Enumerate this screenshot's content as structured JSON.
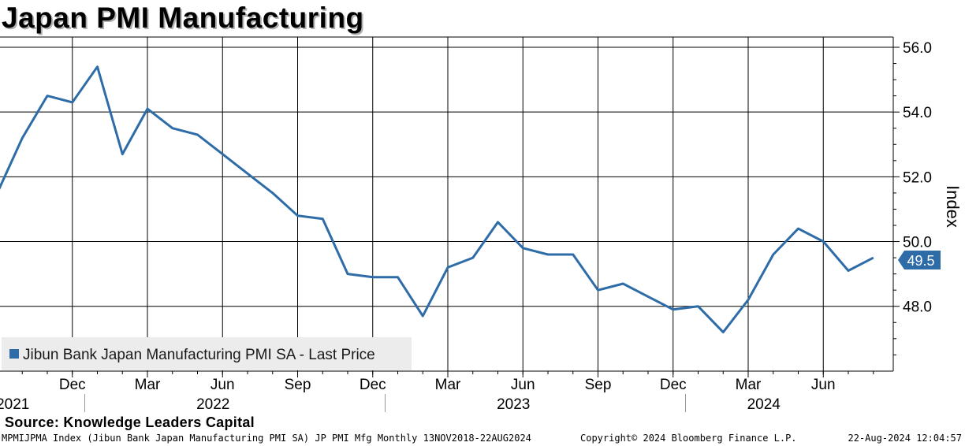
{
  "title": "Japan PMI Manufacturing",
  "source": "Source: Knowledge Leaders Capital",
  "footer": {
    "left": "MPMIJPMA Index (Jibun Bank Japan Manufacturing PMI SA) JP PMI Mfg  Monthly 13NOV2018-22AUG2024",
    "middle": "Copyright© 2024 Bloomberg Finance L.P.",
    "right": "22-Aug-2024 12:04:57"
  },
  "colors": {
    "line": "#2e6ca8",
    "grid": "#000000",
    "legend_bg": "#ececec",
    "last_price_tag": "#2e6ca8"
  },
  "chart_data": {
    "type": "line",
    "ylabel": "Index",
    "ylim": [
      46.2,
      56.6
    ],
    "yticks": [
      48.0,
      50.0,
      52.0,
      54.0,
      56.0
    ],
    "ytick_labels": [
      "48.0",
      "50.0",
      "52.0",
      "54.0",
      "56.0"
    ],
    "xlim": [
      "2021-09",
      "2024-09"
    ],
    "month_ticks": [
      {
        "x": "2021-12",
        "label": "Dec"
      },
      {
        "x": "2022-03",
        "label": "Mar"
      },
      {
        "x": "2022-06",
        "label": "Jun"
      },
      {
        "x": "2022-09",
        "label": "Sep"
      },
      {
        "x": "2022-12",
        "label": "Dec"
      },
      {
        "x": "2023-03",
        "label": "Mar"
      },
      {
        "x": "2023-06",
        "label": "Jun"
      },
      {
        "x": "2023-09",
        "label": "Sep"
      },
      {
        "x": "2023-12",
        "label": "Dec"
      },
      {
        "x": "2024-03",
        "label": "Mar"
      },
      {
        "x": "2024-06",
        "label": "Jun"
      }
    ],
    "year_labels": [
      {
        "x": "2021-10",
        "label": "2021"
      },
      {
        "x": "2022-06",
        "label": "2022"
      },
      {
        "x": "2023-06",
        "label": "2023"
      },
      {
        "x": "2024-04",
        "label": "2024"
      }
    ],
    "year_separators": [
      "2022-01",
      "2023-01",
      "2024-01"
    ],
    "grid": true,
    "legend_position": "bottom-left",
    "last_value_label": "49.5",
    "series": [
      {
        "name": "Jibun Bank Japan Manufacturing PMI SA - Last Price",
        "x": [
          "2021-09",
          "2021-10",
          "2021-11",
          "2021-12",
          "2022-01",
          "2022-02",
          "2022-03",
          "2022-04",
          "2022-05",
          "2022-06",
          "2022-07",
          "2022-08",
          "2022-09",
          "2022-10",
          "2022-11",
          "2022-12",
          "2023-01",
          "2023-02",
          "2023-03",
          "2023-04",
          "2023-05",
          "2023-06",
          "2023-07",
          "2023-08",
          "2023-09",
          "2023-10",
          "2023-11",
          "2023-12",
          "2024-01",
          "2024-02",
          "2024-03",
          "2024-04",
          "2024-05",
          "2024-06",
          "2024-07",
          "2024-08"
        ],
        "values": [
          51.5,
          53.2,
          54.5,
          54.3,
          55.4,
          52.7,
          54.1,
          53.5,
          53.3,
          52.7,
          52.1,
          51.5,
          50.8,
          50.7,
          49.0,
          48.9,
          48.9,
          47.7,
          49.2,
          49.5,
          50.6,
          49.8,
          49.6,
          49.6,
          48.5,
          48.7,
          48.3,
          47.9,
          48.0,
          47.2,
          48.2,
          49.6,
          50.4,
          50.0,
          49.1,
          49.5
        ]
      }
    ]
  }
}
